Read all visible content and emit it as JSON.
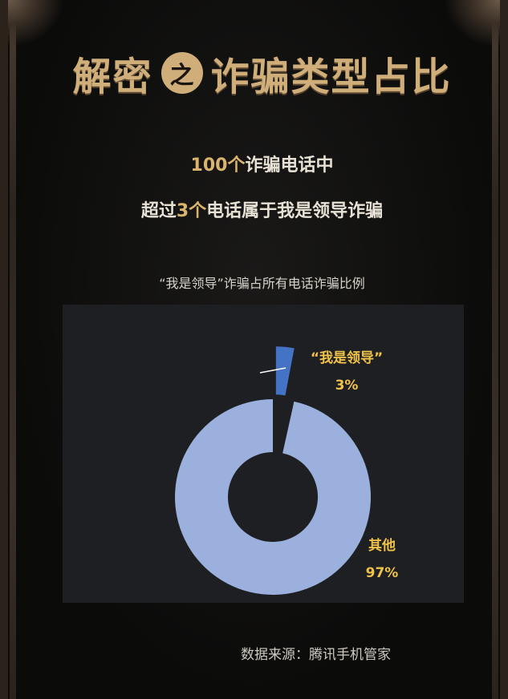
{
  "header": {
    "title_left": "解密",
    "title_badge": "之",
    "title_right": "诈骗类型占比"
  },
  "summary": {
    "line1_number": "100个",
    "line1_text": "诈骗电话中",
    "line2_prefix": "超过",
    "line2_number": "3个",
    "line2_suffix": "电话属于我是领导诈骗"
  },
  "chart_title": "“我是领导”诈骗占所有电话诈骗比例",
  "source": "数据来源：腾讯手机管家",
  "colors": {
    "title_gold": "#cfae7a",
    "label_gold": "#f0c24a",
    "slice_main": "#9bb0dd",
    "slice_small": "#4472c4",
    "chart_bg": "#1d1f22"
  },
  "chart_data": {
    "type": "pie",
    "donut": true,
    "title": "“我是领导”诈骗占所有电话诈骗比例",
    "slices": [
      {
        "label": "“我是领导”",
        "value": 3,
        "value_label": "3%",
        "color": "#4472c4",
        "exploded": true
      },
      {
        "label": "其他",
        "value": 97,
        "value_label": "97%",
        "color": "#9bb0dd",
        "exploded": false
      }
    ]
  }
}
